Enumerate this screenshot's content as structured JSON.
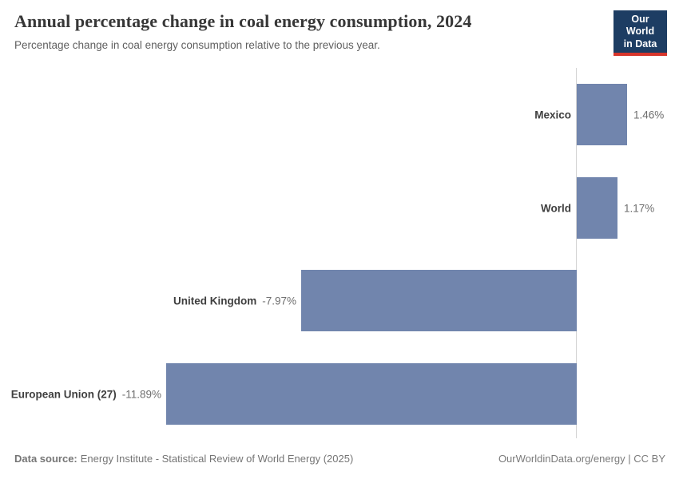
{
  "header": {
    "title": "Annual percentage change in coal energy consumption, 2024",
    "subtitle": "Percentage change in coal energy consumption relative to the previous year.",
    "logo": {
      "line1": "Our World",
      "line2": "in Data",
      "bg_color": "#1d3d63",
      "accent_color": "#d7352b"
    }
  },
  "chart_data": {
    "type": "bar",
    "orientation": "horizontal",
    "categories": [
      "Mexico",
      "World",
      "United Kingdom",
      "European Union (27)"
    ],
    "values": [
      1.46,
      1.17,
      -7.97,
      -11.89
    ],
    "value_labels": [
      "1.46%",
      "1.17%",
      "-7.97%",
      "-11.89%"
    ],
    "title": "Annual percentage change in coal energy consumption, 2024",
    "xlabel": "",
    "ylabel": "",
    "xlim": [
      -11.89,
      1.46
    ],
    "grid": false,
    "legend": false,
    "bar_color": "#7185ad",
    "axis_line_color": "#d4d4d4",
    "label_color": "#3f3f3f",
    "value_color": "#6e6e6e"
  },
  "footer": {
    "source_label": "Data source:",
    "source_text": "Energy Institute - Statistical Review of World Energy (2025)",
    "right_text": "OurWorldinData.org/energy | CC BY"
  }
}
